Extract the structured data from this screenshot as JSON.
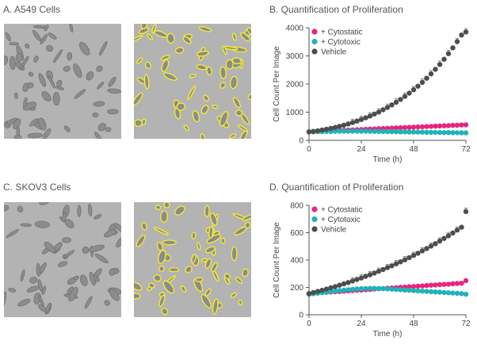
{
  "panels": {
    "a_title": "A. A549 Cells",
    "b_title": "B. Quantification of Proliferation",
    "c_title": "C. SKOV3 Cells",
    "d_title": "D. Quantification of Proliferation"
  },
  "colors": {
    "cytostatic": "#e8247f",
    "cytotoxic": "#1fb3b8",
    "vehicle": "#4d4d4d",
    "mask": "#f2ea32",
    "micro_bg": "#b3b3b3"
  },
  "chart_data": [
    {
      "type": "scatter",
      "title": "B. Quantification of Proliferation",
      "xlabel": "Time (h)",
      "ylabel": "Cell Count Per Image",
      "xlim": [
        0,
        72
      ],
      "ylim": [
        0,
        4000
      ],
      "xticks": [
        0,
        24,
        48,
        72
      ],
      "yticks": [
        0,
        1000,
        2000,
        3000,
        4000
      ],
      "legend_position": "top-left",
      "x": [
        0,
        2,
        4,
        6,
        8,
        10,
        12,
        14,
        16,
        18,
        20,
        22,
        24,
        26,
        28,
        30,
        32,
        34,
        36,
        38,
        40,
        42,
        44,
        46,
        48,
        50,
        52,
        54,
        56,
        58,
        60,
        62,
        64,
        66,
        68,
        70,
        72
      ],
      "series": [
        {
          "name": "+ Cytostatic",
          "values": [
            300,
            308,
            315,
            322,
            329,
            336,
            343,
            350,
            357,
            364,
            371,
            378,
            385,
            392,
            399,
            406,
            413,
            420,
            427,
            434,
            441,
            448,
            455,
            462,
            469,
            476,
            483,
            490,
            497,
            504,
            511,
            518,
            525,
            532,
            539,
            546,
            553
          ]
        },
        {
          "name": "+ Cytotoxic",
          "values": [
            300,
            303,
            307,
            310,
            313,
            316,
            320,
            323,
            325,
            327,
            327,
            326,
            325,
            323,
            321,
            318,
            315,
            312,
            310,
            307,
            305,
            302,
            300,
            297,
            295,
            292,
            290,
            287,
            285,
            282,
            280,
            277,
            275,
            272,
            270,
            267,
            265
          ]
        },
        {
          "name": "Vehicle",
          "values": [
            300,
            319,
            340,
            365,
            393,
            425,
            460,
            498,
            539,
            584,
            632,
            684,
            740,
            800,
            865,
            934,
            1007,
            1086,
            1170,
            1259,
            1353,
            1454,
            1561,
            1675,
            1796,
            1924,
            2061,
            2206,
            2360,
            2523,
            2697,
            2882,
            3078,
            3286,
            3507,
            3742,
            3850
          ]
        }
      ]
    },
    {
      "type": "scatter",
      "title": "D. Quantification of Proliferation",
      "xlabel": "Time (h)",
      "ylabel": "Cell Count Per Image",
      "xlim": [
        0,
        72
      ],
      "ylim": [
        0,
        800
      ],
      "xticks": [
        0,
        24,
        48,
        72
      ],
      "yticks": [
        0,
        200,
        400,
        600,
        800
      ],
      "legend_position": "top-left",
      "x": [
        0,
        2,
        4,
        6,
        8,
        10,
        12,
        14,
        16,
        18,
        20,
        22,
        24,
        26,
        28,
        30,
        32,
        34,
        36,
        38,
        40,
        42,
        44,
        46,
        48,
        50,
        52,
        54,
        56,
        58,
        60,
        62,
        64,
        66,
        68,
        70,
        72
      ],
      "series": [
        {
          "name": "+ Cytostatic",
          "values": [
            155,
            157,
            159,
            162,
            164,
            166,
            168,
            170,
            172,
            175,
            177,
            179,
            181,
            183,
            185,
            188,
            190,
            192,
            194,
            196,
            198,
            201,
            203,
            205,
            207,
            209,
            211,
            214,
            216,
            218,
            220,
            222,
            224,
            227,
            229,
            231,
            250
          ]
        },
        {
          "name": "+ Cytotoxic",
          "values": [
            150,
            154,
            158,
            162,
            166,
            170,
            174,
            177,
            180,
            183,
            186,
            189,
            191,
            192,
            193,
            193,
            192,
            191,
            189,
            187,
            185,
            183,
            181,
            179,
            177,
            175,
            173,
            171,
            169,
            167,
            165,
            163,
            161,
            159,
            157,
            155,
            150
          ]
        },
        {
          "name": "Vehicle",
          "values": [
            155,
            163,
            171,
            179,
            188,
            197,
            206,
            216,
            226,
            236,
            247,
            258,
            269,
            281,
            293,
            305,
            318,
            331,
            345,
            358,
            373,
            387,
            402,
            418,
            434,
            450,
            467,
            484,
            502,
            520,
            539,
            558,
            578,
            598,
            619,
            640,
            755
          ]
        }
      ]
    }
  ]
}
